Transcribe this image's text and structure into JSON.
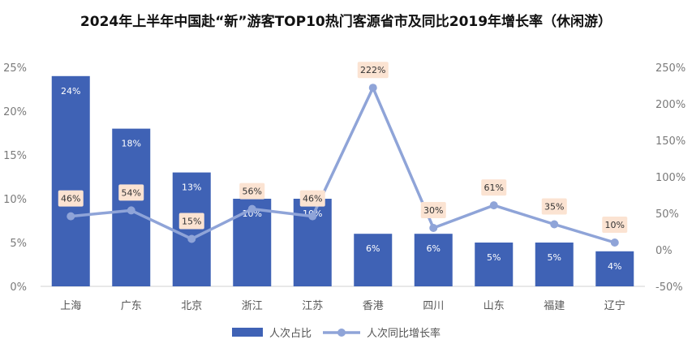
{
  "chart_data": {
    "type": "bar",
    "title": "2024年上半年中国赴“新”游客TOP10热门客源省市及同比2019年增长率（休闲游）",
    "categories": [
      "上海",
      "广东",
      "北京",
      "浙江",
      "江苏",
      "香港",
      "四川",
      "山东",
      "福建",
      "辽宁"
    ],
    "series": [
      {
        "name": "人次占比",
        "type": "bar",
        "axis": "left",
        "color": "#3f62b5",
        "values": [
          24,
          18,
          13,
          10,
          10,
          6,
          6,
          5,
          5,
          4
        ],
        "labels": [
          "24%",
          "18%",
          "13%",
          "10%",
          "10%",
          "6%",
          "6%",
          "5%",
          "5%",
          "4%"
        ]
      },
      {
        "name": "人次同比增长率",
        "type": "line",
        "axis": "right",
        "color": "#8fa4d8",
        "values": [
          46,
          54,
          15,
          56,
          46,
          222,
          30,
          61,
          35,
          10
        ],
        "labels": [
          "46%",
          "54%",
          "15%",
          "56%",
          "46%",
          "222%",
          "30%",
          "61%",
          "35%",
          "10%"
        ]
      }
    ],
    "y_left": {
      "ylim": [
        0,
        25
      ],
      "ticks": [
        "0%",
        "5%",
        "10%",
        "15%",
        "20%",
        "25%"
      ]
    },
    "y_right": {
      "ylim": [
        -50,
        250
      ],
      "ticks": [
        "-50%",
        "0%",
        "50%",
        "100%",
        "150%",
        "200%",
        "250%"
      ]
    },
    "grid": false,
    "legend": "bottom"
  }
}
